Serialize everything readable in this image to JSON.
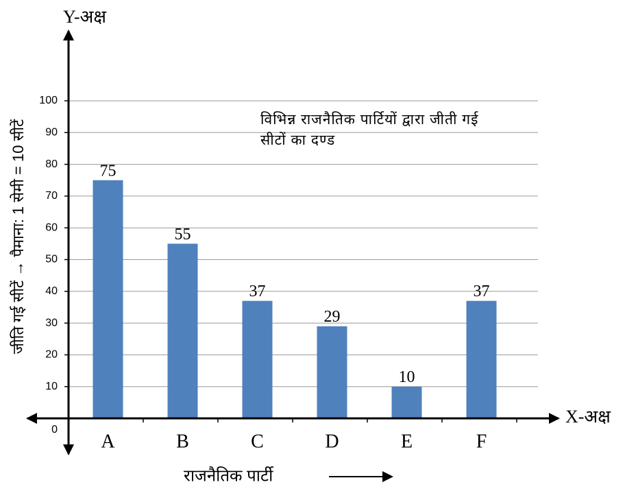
{
  "chart_data": {
    "type": "bar",
    "title": "विभिन्न राजनैतिक पार्टियों द्वारा जीती गई सीटों का दण्ड",
    "y_axis_name": "Y-अक्ष",
    "x_axis_name": "X-अक्ष",
    "y_label": "जीति गई सीटें → पैमाना: 1 सेमी = 10 सीटें",
    "x_label": "राजनैतिक पार्टी",
    "categories": [
      "A",
      "B",
      "C",
      "D",
      "E",
      "F"
    ],
    "values": [
      75,
      55,
      37,
      29,
      10,
      37
    ],
    "color": "#4f81bd",
    "ylim": [
      0,
      100
    ],
    "yticks": [
      0,
      10,
      20,
      30,
      40,
      50,
      60,
      70,
      80,
      90,
      100
    ],
    "grid": true
  }
}
